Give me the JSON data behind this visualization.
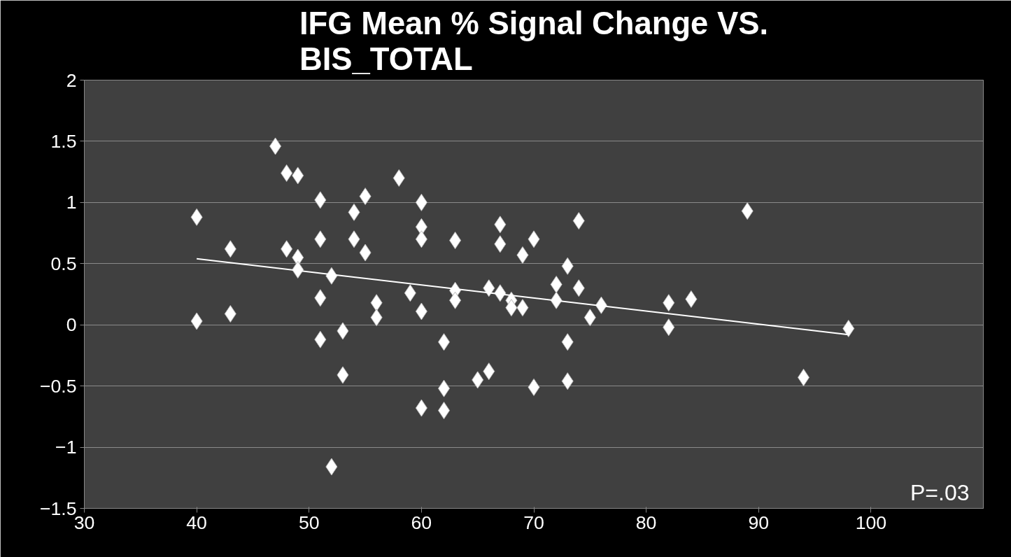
{
  "chart_data": {
    "type": "scatter",
    "title": "IFG Mean % Signal Change VS. BIS_TOTAL",
    "x": [
      40,
      40,
      43,
      43,
      47,
      48,
      49,
      48,
      49,
      49,
      51,
      51,
      51,
      51,
      52,
      52,
      53,
      53,
      54,
      54,
      55,
      55,
      56,
      56,
      58,
      59,
      60,
      60,
      60,
      60,
      60,
      62,
      62,
      62,
      63,
      63,
      63,
      65,
      66,
      66,
      67,
      67,
      67,
      68,
      68,
      69,
      69,
      70,
      70,
      72,
      72,
      73,
      73,
      73,
      74,
      74,
      75,
      76,
      82,
      82,
      84,
      89,
      94,
      98
    ],
    "series": [
      {
        "color": "#ffffff",
        "marker": "diamond",
        "values": [
          0.88,
          0.03,
          0.62,
          0.09,
          1.46,
          1.24,
          1.22,
          0.62,
          0.55,
          0.45,
          1.02,
          0.7,
          0.22,
          -0.12,
          0.4,
          -1.16,
          -0.05,
          -0.41,
          0.92,
          0.7,
          1.05,
          0.59,
          0.18,
          0.06,
          1.2,
          0.26,
          1.0,
          0.8,
          0.7,
          0.11,
          -0.68,
          -0.14,
          -0.52,
          -0.7,
          0.69,
          0.28,
          0.2,
          -0.45,
          -0.38,
          0.3,
          0.82,
          0.66,
          0.26,
          0.2,
          0.14,
          0.57,
          0.14,
          0.7,
          -0.51,
          0.33,
          0.2,
          0.48,
          -0.14,
          -0.46,
          0.85,
          0.3,
          0.06,
          0.16,
          0.18,
          -0.02,
          0.21,
          0.93,
          -0.43,
          -0.03
        ]
      },
      {
        "type": "line",
        "color": "#ffffff",
        "marker": "none",
        "x": [
          40,
          98
        ],
        "values": [
          0.54,
          -0.08
        ]
      }
    ],
    "xlim": [
      30,
      110
    ],
    "xticks": [
      30,
      40,
      50,
      60,
      70,
      80,
      90,
      100
    ],
    "ylim": [
      -1.5,
      2
    ],
    "yticks": [
      -1.5,
      -1,
      -0.5,
      0,
      0.5,
      1,
      1.5,
      2
    ],
    "grid": "y",
    "annotations": [
      "P=.03"
    ]
  }
}
